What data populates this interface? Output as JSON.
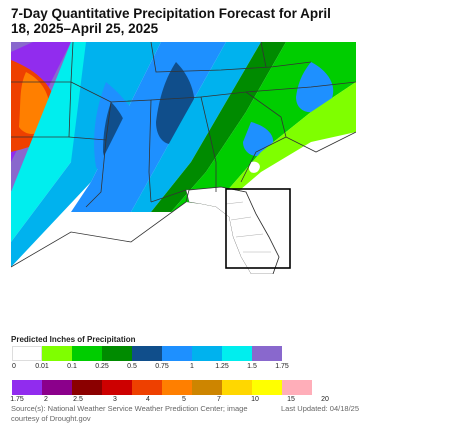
{
  "title": "7-Day Quantitative Precipitation Forecast for April 18, 2025–April 25, 2025",
  "map": {
    "region": "Southeastern United States",
    "highlight": "Florida (outlined box)",
    "notes": "Heaviest totals (purple/magenta/orange) over Arkansas, Missouri and Louisiana; blue/green band across Tennessee, Mississippi, Alabama, Georgia and the Carolinas; little to no precipitation over Florida."
  },
  "legend": {
    "title": "Predicted Inches of Precipitation",
    "row1": {
      "colors": [
        "#ffffff",
        "#7fff00",
        "#00cd00",
        "#008b00",
        "#104e8b",
        "#1e90ff",
        "#00b2ee",
        "#00eeee",
        "#8968cd"
      ],
      "ticks": [
        "0",
        "0.01",
        "0.1",
        "0.25",
        "0.5",
        "0.75",
        "1",
        "1.25",
        "1.5",
        "1.75"
      ]
    },
    "row2": {
      "colors": [
        "#912cee",
        "#8b008b",
        "#8b0000",
        "#cd0000",
        "#ee4000",
        "#ff7f00",
        "#cd8500",
        "#ffd700",
        "#ffff00",
        "#ffaeb9"
      ],
      "ticks": [
        "1.75",
        "2",
        "2.5",
        "3",
        "4",
        "5",
        "7",
        "10",
        "15",
        "20"
      ]
    }
  },
  "footer": {
    "source": "Source(s): National Weather Service Weather Prediction Center; image courtesy of Drought.gov",
    "updated": "Last Updated: 04/18/25"
  }
}
